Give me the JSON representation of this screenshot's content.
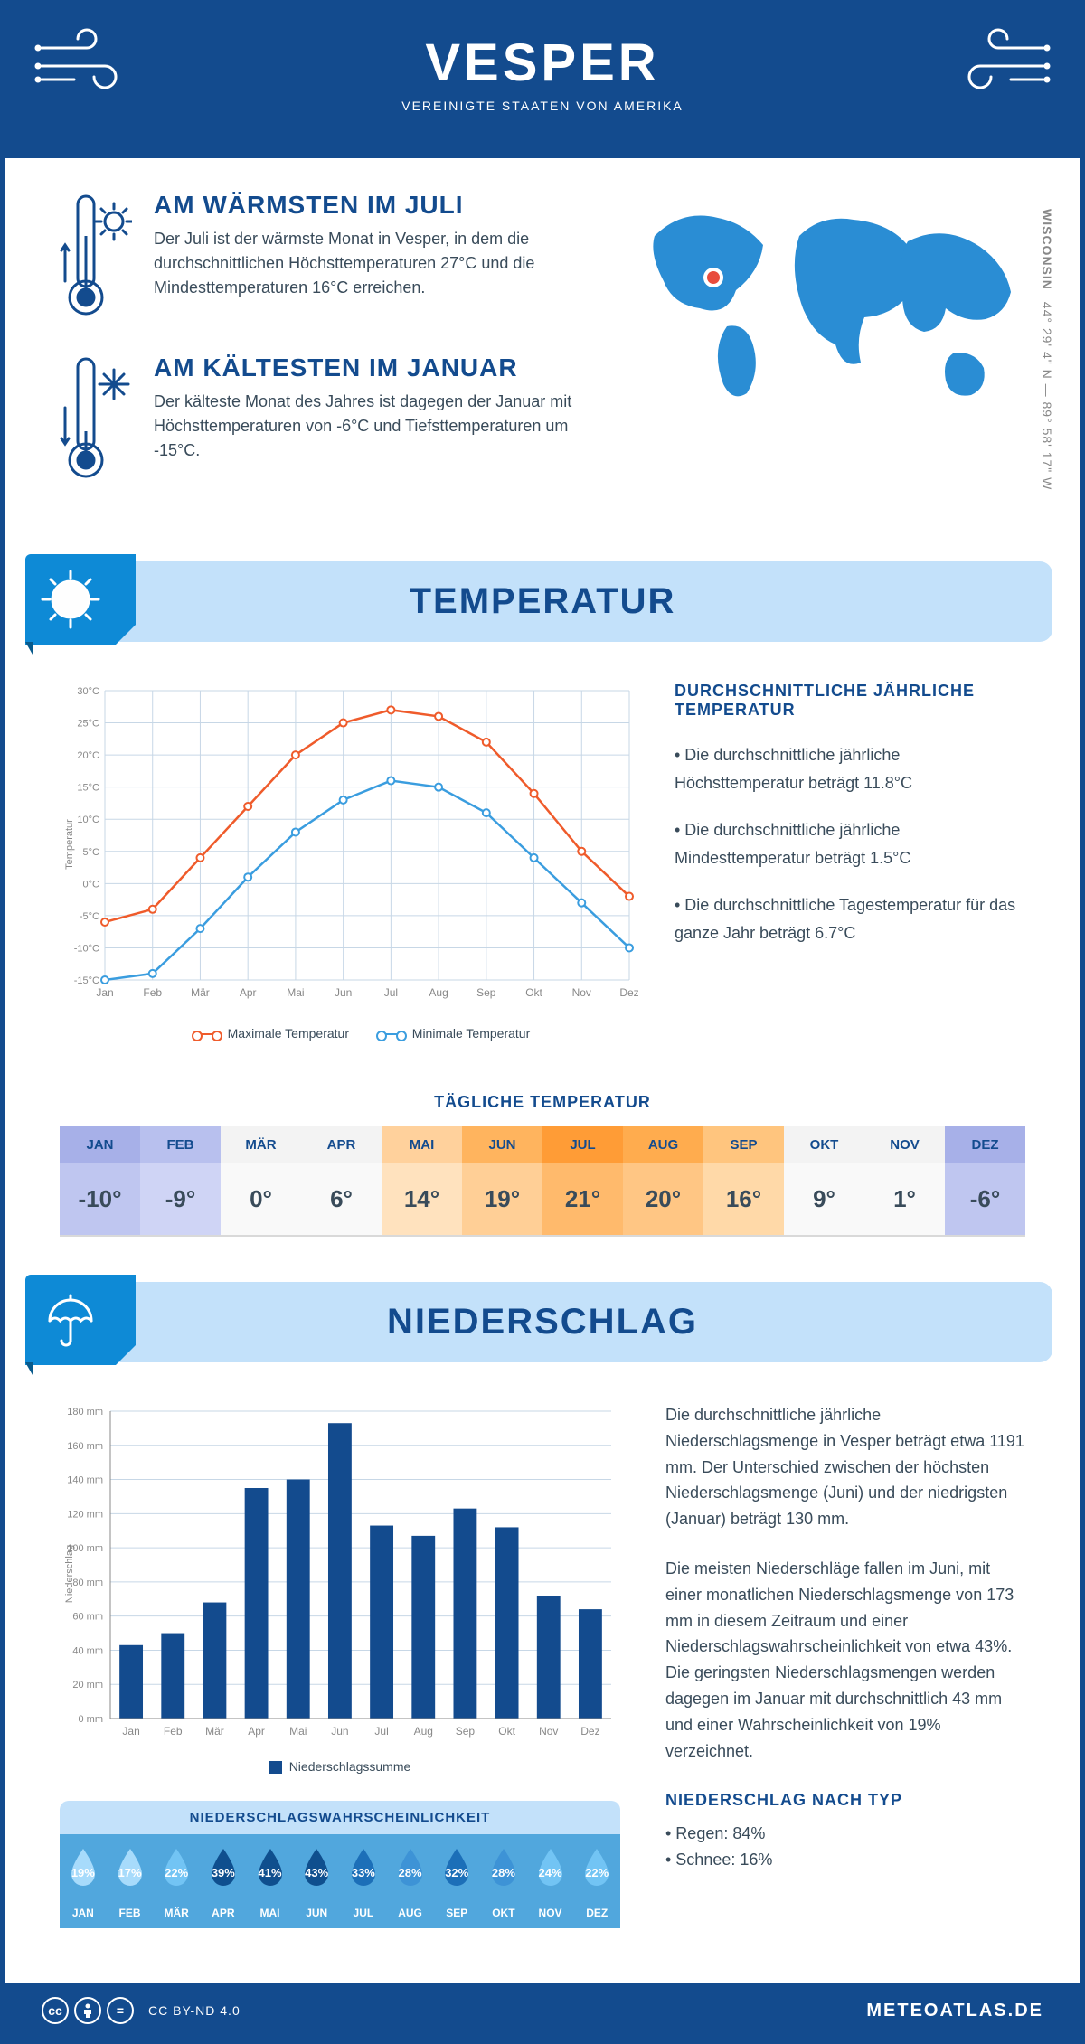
{
  "header": {
    "title": "VESPER",
    "subtitle": "VEREINIGTE STAATEN VON AMERIKA"
  },
  "intro": {
    "warmest": {
      "heading": "AM WÄRMSTEN IM JULI",
      "text": "Der Juli ist der wärmste Monat in Vesper, in dem die durchschnittlichen Höchsttemperaturen 27°C und die Mindesttemperaturen 16°C erreichen."
    },
    "coldest": {
      "heading": "AM KÄLTESTEN IM JANUAR",
      "text": "Der kälteste Monat des Jahres ist dagegen der Januar mit Höchsttemperaturen von -6°C und Tiefsttemperaturen um -15°C."
    },
    "state": "WISCONSIN",
    "coords": "44° 29' 4\" N — 89° 58' 17\" W"
  },
  "temperature": {
    "section_title": "TEMPERATUR",
    "chart": {
      "months": [
        "Jan",
        "Feb",
        "Mär",
        "Apr",
        "Mai",
        "Jun",
        "Jul",
        "Aug",
        "Sep",
        "Okt",
        "Nov",
        "Dez"
      ],
      "max": [
        -6,
        -4,
        4,
        12,
        20,
        25,
        27,
        26,
        22,
        14,
        5,
        -2
      ],
      "min": [
        -15,
        -14,
        -7,
        1,
        8,
        13,
        16,
        15,
        11,
        4,
        -3,
        -10
      ],
      "ylim": [
        -15,
        30
      ],
      "ytick_step": 5,
      "y_label": "Temperatur",
      "color_max": "#ef5b2b",
      "color_min": "#3a9ddf",
      "grid_color": "#c7d7e6",
      "axis_color": "#888",
      "legend_max": "Maximale Temperatur",
      "legend_min": "Minimale Temperatur"
    },
    "stats": {
      "heading": "DURCHSCHNITTLICHE JÄHRLICHE TEMPERATUR",
      "bullets": [
        "• Die durchschnittliche jährliche Höchsttemperatur beträgt 11.8°C",
        "• Die durchschnittliche jährliche Mindesttemperatur beträgt 1.5°C",
        "• Die durchschnittliche Tagestemperatur für das ganze Jahr beträgt 6.7°C"
      ]
    },
    "daily": {
      "title": "TÄGLICHE TEMPERATUR",
      "months": [
        "JAN",
        "FEB",
        "MÄR",
        "APR",
        "MAI",
        "JUN",
        "JUL",
        "AUG",
        "SEP",
        "OKT",
        "NOV",
        "DEZ"
      ],
      "values": [
        "-10°",
        "-9°",
        "0°",
        "6°",
        "14°",
        "19°",
        "21°",
        "20°",
        "16°",
        "9°",
        "1°",
        "-6°"
      ],
      "head_colors": [
        "#a7b0e8",
        "#b8c0ee",
        "#f3f3f3",
        "#f3f3f3",
        "#ffd19c",
        "#ffb45e",
        "#ff9c36",
        "#ffac4e",
        "#ffc57e",
        "#f3f3f3",
        "#f3f3f3",
        "#a7b0e8"
      ],
      "val_colors": [
        "#bfc6f0",
        "#cfd4f5",
        "#f9f9f9",
        "#f9f9f9",
        "#ffe2be",
        "#ffcf96",
        "#ffba6c",
        "#ffc684",
        "#ffd9a8",
        "#f9f9f9",
        "#f9f9f9",
        "#bfc6f0"
      ]
    }
  },
  "precip": {
    "section_title": "NIEDERSCHLAG",
    "chart": {
      "months": [
        "Jan",
        "Feb",
        "Mär",
        "Apr",
        "Mai",
        "Jun",
        "Jul",
        "Aug",
        "Sep",
        "Okt",
        "Nov",
        "Dez"
      ],
      "values": [
        43,
        50,
        68,
        135,
        140,
        173,
        113,
        107,
        123,
        112,
        72,
        64
      ],
      "ylim": [
        0,
        180
      ],
      "ytick_step": 20,
      "y_label": "Niederschlag",
      "bar_color": "#134b8e",
      "grid_color": "#c7d7e6",
      "legend": "Niederschlagssumme"
    },
    "text1": "Die durchschnittliche jährliche Niederschlagsmenge in Vesper beträgt etwa 1191 mm. Der Unterschied zwischen der höchsten Niederschlagsmenge (Juni) und der niedrigsten (Januar) beträgt 130 mm.",
    "text2": "Die meisten Niederschläge fallen im Juni, mit einer monatlichen Niederschlagsmenge von 173 mm in diesem Zeitraum und einer Niederschlagswahrscheinlichkeit von etwa 43%. Die geringsten Niederschlagsmengen werden dagegen im Januar mit durchschnittlich 43 mm und einer Wahrscheinlichkeit von 19% verzeichnet.",
    "by_type_head": "NIEDERSCHLAG NACH TYP",
    "by_type_rain": "• Regen: 84%",
    "by_type_snow": "• Schnee: 16%",
    "prob": {
      "title": "NIEDERSCHLAGSWAHRSCHEINLICHKEIT",
      "months": [
        "JAN",
        "FEB",
        "MÄR",
        "APR",
        "MAI",
        "JUN",
        "JUL",
        "AUG",
        "SEP",
        "OKT",
        "NOV",
        "DEZ"
      ],
      "pct": [
        "19%",
        "17%",
        "22%",
        "39%",
        "41%",
        "43%",
        "33%",
        "28%",
        "32%",
        "28%",
        "24%",
        "22%"
      ],
      "drop_colors": [
        "#a7dbfb",
        "#a7dbfb",
        "#72c4f4",
        "#0f4f8e",
        "#0f4f8e",
        "#0f4f8e",
        "#1c6fb8",
        "#3d93d6",
        "#1c6fb8",
        "#3d93d6",
        "#72c4f4",
        "#72c4f4"
      ]
    }
  },
  "footer": {
    "license": "CC BY-ND 4.0",
    "brand": "METEOATLAS.DE"
  },
  "palette": {
    "brand_blue": "#134b8e",
    "band_light": "#c3e1fa",
    "accent_blue": "#0e8ad6",
    "map_blue": "#2a8dd4"
  }
}
